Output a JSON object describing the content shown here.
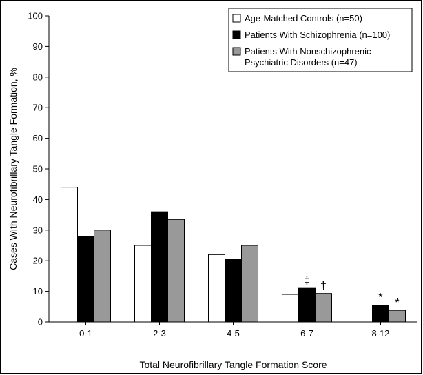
{
  "chart_data": {
    "type": "bar",
    "title": "",
    "xlabel": "Total Neurofibrillary Tangle Formation Score",
    "ylabel": "Cases With Neurofibrillary Tangle Formation, %",
    "ylim": [
      0,
      100
    ],
    "yticks": [
      0,
      10,
      20,
      30,
      40,
      50,
      60,
      70,
      80,
      90,
      100
    ],
    "grid": false,
    "legend_position": "top-right",
    "categories": [
      "0-1",
      "2-3",
      "4-5",
      "6-7",
      "8-12"
    ],
    "series": [
      {
        "name": "Age-Matched Controls (n=50)",
        "color": "#ffffff",
        "values": [
          44,
          25,
          22,
          9,
          0
        ],
        "annotations": [
          "",
          "",
          "",
          "",
          ""
        ]
      },
      {
        "name": "Patients With Schizophrenia (n=100)",
        "color": "#000000",
        "values": [
          28,
          36,
          20.5,
          11,
          5.5
        ],
        "annotations": [
          "",
          "",
          "",
          "‡",
          "*"
        ]
      },
      {
        "name_lines": [
          "Patients With Nonschizophrenic",
          "Psychiatric Disorders (n=47)"
        ],
        "color": "#999999",
        "values": [
          30,
          33.5,
          25,
          9.3,
          3.8
        ],
        "annotations": [
          "",
          "",
          "",
          "†",
          "*"
        ]
      }
    ]
  }
}
